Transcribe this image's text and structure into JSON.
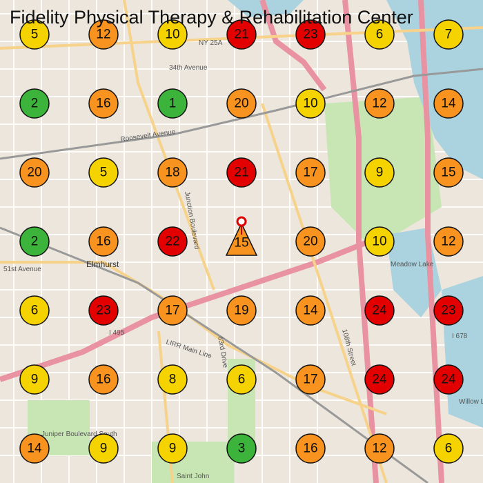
{
  "title": "Fidelity Physical Therapy & Rehabilitation Center",
  "map_labels": [
    "NY 25A",
    "34th Avenue",
    "Roosevelt Avenue",
    "Elmhurst",
    "51st Avenue",
    "Junction Boulevard",
    "LIRR Main Line",
    "I 495",
    "I 678",
    "63rd Drive",
    "108th Street",
    "Meadow Lake",
    "Willow Lake",
    "Saint John",
    "Juniper Boulevard South"
  ],
  "grid": {
    "rows": [
      [
        {
          "value": 5,
          "color": "#f5d300"
        },
        {
          "value": 12,
          "color": "#f7931e"
        },
        {
          "value": 10,
          "color": "#f5d300"
        },
        {
          "value": 21,
          "color": "#e30000"
        },
        {
          "value": 23,
          "color": "#e30000"
        },
        {
          "value": 6,
          "color": "#f5d300"
        },
        {
          "value": 7,
          "color": "#f5d300"
        }
      ],
      [
        {
          "value": 2,
          "color": "#3cb43c"
        },
        {
          "value": 16,
          "color": "#f7931e"
        },
        {
          "value": 1,
          "color": "#3cb43c"
        },
        {
          "value": 20,
          "color": "#f7931e"
        },
        {
          "value": 10,
          "color": "#f5d300"
        },
        {
          "value": 12,
          "color": "#f7931e"
        },
        {
          "value": 14,
          "color": "#f7931e"
        }
      ],
      [
        {
          "value": 20,
          "color": "#f7931e"
        },
        {
          "value": 5,
          "color": "#f5d300"
        },
        {
          "value": 18,
          "color": "#f7931e"
        },
        {
          "value": 21,
          "color": "#e30000"
        },
        {
          "value": 17,
          "color": "#f7931e"
        },
        {
          "value": 9,
          "color": "#f5d300"
        },
        {
          "value": 15,
          "color": "#f7931e"
        }
      ],
      [
        {
          "value": 2,
          "color": "#3cb43c"
        },
        {
          "value": 16,
          "color": "#f7931e"
        },
        {
          "value": 22,
          "color": "#e30000"
        },
        {
          "value": 15,
          "color": "#f7931e",
          "shape": "triangle"
        },
        {
          "value": 20,
          "color": "#f7931e"
        },
        {
          "value": 10,
          "color": "#f5d300"
        },
        {
          "value": 12,
          "color": "#f7931e"
        }
      ],
      [
        {
          "value": 6,
          "color": "#f5d300"
        },
        {
          "value": 23,
          "color": "#e30000"
        },
        {
          "value": 17,
          "color": "#f7931e"
        },
        {
          "value": 19,
          "color": "#f7931e"
        },
        {
          "value": 14,
          "color": "#f7931e"
        },
        {
          "value": 24,
          "color": "#e30000"
        },
        {
          "value": 23,
          "color": "#e30000"
        }
      ],
      [
        {
          "value": 9,
          "color": "#f5d300"
        },
        {
          "value": 16,
          "color": "#f7931e"
        },
        {
          "value": 8,
          "color": "#f5d300"
        },
        {
          "value": 6,
          "color": "#f5d300"
        },
        {
          "value": 17,
          "color": "#f7931e"
        },
        {
          "value": 24,
          "color": "#e30000"
        },
        {
          "value": 24,
          "color": "#e30000"
        }
      ],
      [
        {
          "value": 14,
          "color": "#f7931e"
        },
        {
          "value": 9,
          "color": "#f5d300"
        },
        {
          "value": 9,
          "color": "#f5d300"
        },
        {
          "value": 3,
          "color": "#3cb43c"
        },
        {
          "value": 16,
          "color": "#f7931e"
        },
        {
          "value": 12,
          "color": "#f7931e"
        },
        {
          "value": 6,
          "color": "#f5d300"
        }
      ]
    ]
  }
}
